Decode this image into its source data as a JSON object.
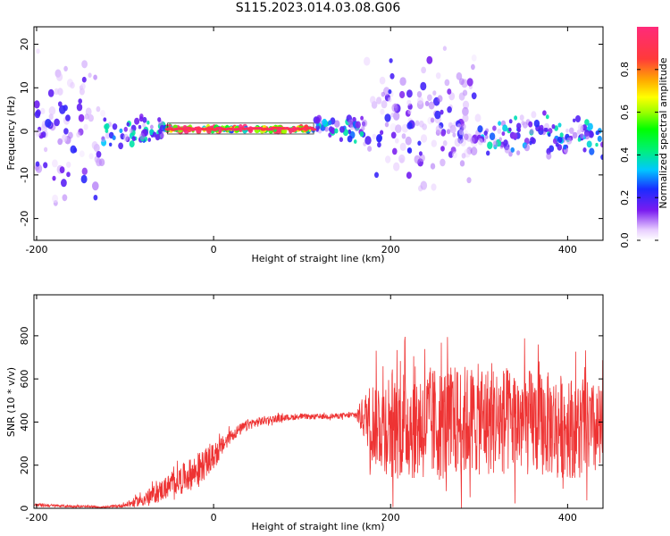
{
  "title": "S115.2023.014.03.08.G06",
  "chart_data": [
    {
      "type": "heatmap",
      "xlabel": "Height of straight line (km)",
      "ylabel": "Frequency (Hz)",
      "xlim": [
        -203,
        440
      ],
      "ylim": [
        -25,
        24
      ],
      "xticks": [
        -200,
        0,
        200,
        400
      ],
      "yticks": [
        -20,
        -10,
        0,
        10,
        20
      ],
      "colorbar": {
        "label": "Normalized spectral amplitude",
        "range": [
          0,
          1
        ],
        "ticks": [
          0.0,
          0.2,
          0.4,
          0.6,
          0.8
        ]
      },
      "features": [
        {
          "x_range": [
            -200,
            -125
          ],
          "freq_center": 0,
          "freq_spread": 24,
          "amplitude": 0.15
        },
        {
          "x_range": [
            -125,
            -55
          ],
          "freq_center": 0,
          "freq_spread": 5,
          "amplitude": 0.4
        },
        {
          "x_range": [
            -55,
            115
          ],
          "freq_center": 0.5,
          "freq_spread": 0.7,
          "amplitude": 1.0
        },
        {
          "x_range": [
            115,
            170
          ],
          "freq_center": 1,
          "freq_spread": 4,
          "amplitude": 0.35
        },
        {
          "x_range": [
            170,
            300
          ],
          "freq_center": 2,
          "freq_spread": 20,
          "amplitude": 0.15
        },
        {
          "x_range": [
            300,
            440
          ],
          "freq_center": -1,
          "freq_spread": 6,
          "amplitude": 0.3
        }
      ]
    },
    {
      "type": "line",
      "xlabel": "Height of straight line (km)",
      "ylabel": "SNR (10 * v/v)",
      "xlim": [
        -203,
        440
      ],
      "ylim": [
        0,
        990
      ],
      "xticks": [
        -200,
        0,
        200,
        400
      ],
      "yticks": [
        0,
        200,
        400,
        600,
        800
      ],
      "series": [
        {
          "color": "#ee3333",
          "x": [
            -200,
            -150,
            -120,
            -100,
            -80,
            -60,
            -40,
            -20,
            0,
            20,
            40,
            60,
            80,
            100,
            120,
            140,
            160,
            175,
            180,
            200,
            250,
            300,
            350,
            400,
            440
          ],
          "y": [
            15,
            8,
            5,
            15,
            40,
            80,
            130,
            170,
            240,
            340,
            390,
            410,
            420,
            425,
            425,
            428,
            432,
            420,
            400,
            400,
            390,
            410,
            400,
            380,
            350
          ],
          "noise": [
            8,
            5,
            4,
            10,
            30,
            50,
            60,
            80,
            60,
            30,
            25,
            20,
            15,
            12,
            12,
            12,
            15,
            150,
            200,
            260,
            270,
            260,
            250,
            240,
            220
          ]
        }
      ]
    }
  ]
}
